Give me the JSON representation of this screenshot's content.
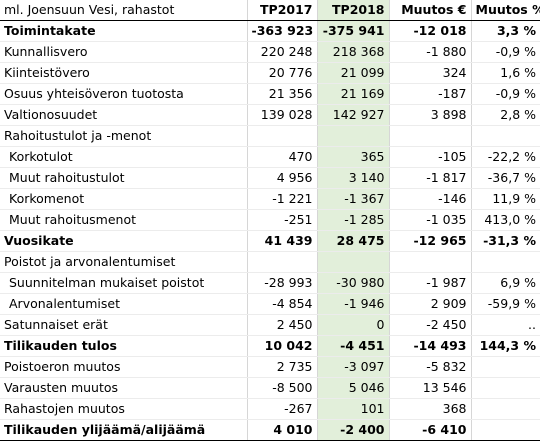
{
  "header": [
    "ml. Joensuun Vesi, rahastot",
    "TP2017",
    "TP2018",
    "Muutos €",
    "Muutos %"
  ],
  "rows": [
    {
      "label": "Toimintakate",
      "tp2017": "-363 923",
      "tp2018": "-375 941",
      "muutos": "-12 018",
      "pct": "3,3 %",
      "style": "bold"
    },
    {
      "label": "Kunnallisvero",
      "tp2017": "220 248",
      "tp2018": "218 368",
      "muutos": "-1 880",
      "pct": "-0,9 %",
      "style": ""
    },
    {
      "label": "Kiinteistövero",
      "tp2017": "20 776",
      "tp2018": "21 099",
      "muutos": "324",
      "pct": "1,6 %",
      "style": ""
    },
    {
      "label": "Osuus yhteisöveron tuotosta",
      "tp2017": "21 356",
      "tp2018": "21 169",
      "muutos": "-187",
      "pct": "-0,9 %",
      "style": ""
    },
    {
      "label": "Valtionosuudet",
      "tp2017": "139 028",
      "tp2018": "142 927",
      "muutos": "3 898",
      "pct": "2,8 %",
      "style": ""
    },
    {
      "label": "Rahoitustulot ja -menot",
      "tp2017": "",
      "tp2018": "",
      "muutos": "",
      "pct": "",
      "style": ""
    },
    {
      "label": "Korkotulot",
      "tp2017": "470",
      "tp2018": "365",
      "muutos": "-105",
      "pct": "-22,2 %",
      "style": "indent"
    },
    {
      "label": "Muut rahoitustulot",
      "tp2017": "4 956",
      "tp2018": "3 140",
      "muutos": "-1 817",
      "pct": "-36,7 %",
      "style": "indent"
    },
    {
      "label": "Korkomenot",
      "tp2017": "-1 221",
      "tp2018": "-1 367",
      "muutos": "-146",
      "pct": "11,9 %",
      "style": "indent"
    },
    {
      "label": "Muut rahoitusmenot",
      "tp2017": "-251",
      "tp2018": "-1 285",
      "muutos": "-1 035",
      "pct": "413,0 %",
      "style": "indent"
    },
    {
      "label": "Vuosikate",
      "tp2017": "41 439",
      "tp2018": "28 475",
      "muutos": "-12 965",
      "pct": "-31,3 %",
      "style": "bold"
    },
    {
      "label": "Poistot ja arvonalentumiset",
      "tp2017": "",
      "tp2018": "",
      "muutos": "",
      "pct": "",
      "style": ""
    },
    {
      "label": "Suunnitelman mukaiset poistot",
      "tp2017": "-28 993",
      "tp2018": "-30 980",
      "muutos": "-1 987",
      "pct": "6,9 %",
      "style": "indent"
    },
    {
      "label": "Arvonalentumiset",
      "tp2017": "-4 854",
      "tp2018": "-1 946",
      "muutos": "2 909",
      "pct": "-59,9 %",
      "style": "indent"
    },
    {
      "label": "Satunnaiset erät",
      "tp2017": "2 450",
      "tp2018": "0",
      "muutos": "-2 450",
      "pct": "..",
      "style": ""
    },
    {
      "label": "Tilikauden tulos",
      "tp2017": "10 042",
      "tp2018": "-4 451",
      "muutos": "-14 493",
      "pct": "144,3 %",
      "style": "bold"
    },
    {
      "label": "Poistoeron muutos",
      "tp2017": "2 735",
      "tp2018": "-3 097",
      "muutos": "-5 832",
      "pct": "",
      "style": ""
    },
    {
      "label": "Varausten muutos",
      "tp2017": "-8 500",
      "tp2018": "5 046",
      "muutos": "13 546",
      "pct": "",
      "style": ""
    },
    {
      "label": "Rahastojen muutos",
      "tp2017": "-267",
      "tp2018": "101",
      "muutos": "368",
      "pct": "",
      "style": ""
    },
    {
      "label": "Tilikauden ylijäämä/alijäämä",
      "tp2017": "4 010",
      "tp2018": "-2 400",
      "muutos": "-6 410",
      "pct": "",
      "style": "bold topline bottomline"
    }
  ]
}
